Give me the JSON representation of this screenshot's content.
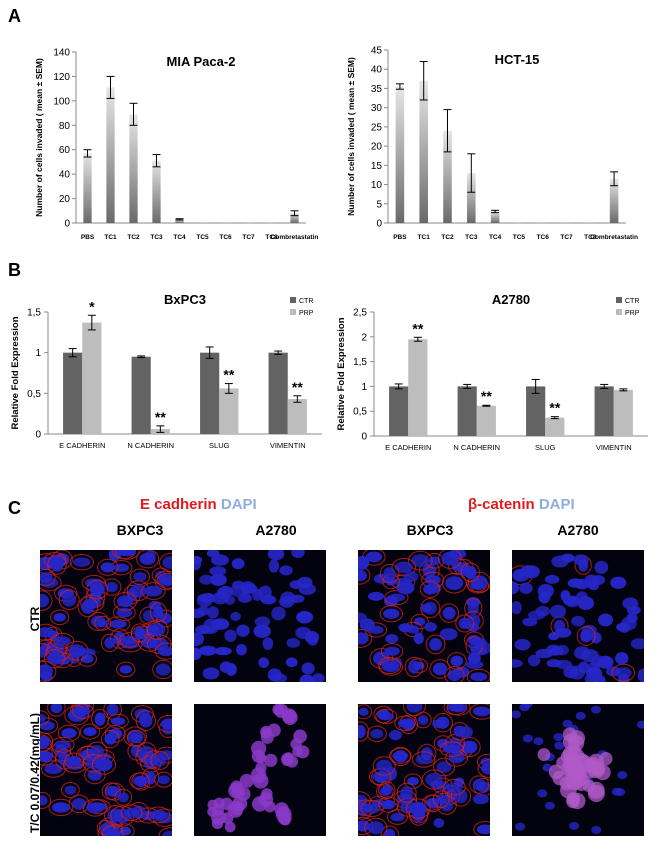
{
  "panels": {
    "a": "A",
    "b": "B",
    "c": "C"
  },
  "chart_data": [
    {
      "type": "bar",
      "id": "mia",
      "title": "MIA Paca-2",
      "ylabel": "Number of cells  invaded ( mean ± SEM)",
      "categories": [
        "PBS",
        "TC1",
        "TC2",
        "TC3",
        "TC4",
        "TC5",
        "TC6",
        "TC7",
        "TC8",
        "Combretastatin"
      ],
      "values": [
        57,
        111,
        89,
        51,
        3,
        0,
        0,
        0,
        0,
        8
      ],
      "errors": [
        3,
        9,
        9,
        5,
        0.5,
        0,
        0,
        0,
        0,
        2
      ],
      "ylim": [
        0,
        140
      ],
      "yticks": [
        0,
        20,
        40,
        60,
        80,
        100,
        120,
        140
      ],
      "ytick_labels": [
        "0",
        "20",
        "40",
        "60",
        "80",
        "100",
        "120",
        "140"
      ],
      "grid": false
    },
    {
      "type": "bar",
      "id": "hct",
      "title": "HCT-15",
      "ylabel": "Number of cells  invaded ( mean ± SEM)",
      "categories": [
        "PBS",
        "TC1",
        "TC2",
        "TC3",
        "TC4",
        "TC5",
        "TC6",
        "TC7",
        "TC8",
        "Combretastatin"
      ],
      "values": [
        35.5,
        37,
        24,
        13,
        3,
        0,
        0,
        0,
        0,
        11.5
      ],
      "errors": [
        0.7,
        5,
        5.5,
        5,
        0.3,
        0,
        0,
        0,
        0,
        1.8
      ],
      "ylim": [
        0,
        45
      ],
      "yticks": [
        0,
        5,
        10,
        15,
        20,
        25,
        30,
        35,
        40,
        45
      ],
      "ytick_labels": [
        "0",
        "5",
        "10",
        "15",
        "20",
        "25",
        "30",
        "35",
        "40",
        "45"
      ],
      "grid": false
    },
    {
      "type": "bar",
      "id": "bxpc3",
      "title": "BxPC3",
      "ylabel": "Relative Fold Expression",
      "categories": [
        "E CADHERIN",
        "N CADHERIN",
        "SLUG",
        "VIMENTIN"
      ],
      "series": [
        {
          "name": "CTR",
          "values": [
            1.0,
            0.95,
            1.0,
            1.0
          ],
          "errors": [
            0.05,
            0.01,
            0.07,
            0.02
          ],
          "color": "#636363"
        },
        {
          "name": "PRP",
          "values": [
            1.37,
            0.06,
            0.56,
            0.43
          ],
          "errors": [
            0.09,
            0.04,
            0.06,
            0.04
          ],
          "color": "#bdbdbd"
        }
      ],
      "annotations": [
        "*",
        "**",
        "**",
        "**"
      ],
      "ylim": [
        0,
        1.5
      ],
      "yticks": [
        0,
        0.5,
        1,
        1.5
      ],
      "ytick_labels": [
        "0",
        "0,5",
        "1",
        "1,5"
      ],
      "legend": "top-right",
      "grid": false
    },
    {
      "type": "bar",
      "id": "a2780",
      "title": "A2780",
      "ylabel": "Relative Fold Expression",
      "categories": [
        "E CADHERIN",
        "N CADHERIN",
        "SLUG",
        "VIMENTIN"
      ],
      "series": [
        {
          "name": "CTR",
          "values": [
            1.0,
            1.0,
            1.0,
            1.0
          ],
          "errors": [
            0.05,
            0.04,
            0.14,
            0.04
          ],
          "color": "#636363"
        },
        {
          "name": "PRP",
          "values": [
            1.95,
            0.61,
            0.37,
            0.93
          ],
          "errors": [
            0.04,
            0.01,
            0.02,
            0.02
          ],
          "color": "#bdbdbd"
        }
      ],
      "annotations": [
        "**",
        "**",
        "**",
        ""
      ],
      "ylim": [
        0,
        2.5
      ],
      "yticks": [
        0,
        0.5,
        1,
        1.5,
        2,
        2.5
      ],
      "ytick_labels": [
        "0",
        "0,5",
        "1",
        "1,5",
        "2",
        "2,5"
      ],
      "legend": "top-right",
      "grid": false
    }
  ],
  "panel_c": {
    "header_left": {
      "marker": "E cadherin",
      "stain": "DAPI"
    },
    "header_right": {
      "marker": "β-catenin",
      "stain": "DAPI"
    },
    "columns": [
      "BXPC3",
      "A2780",
      "BXPC3",
      "A2780"
    ],
    "rows": [
      "CTR",
      "T/C 0.07/0.42(mg/mL)"
    ],
    "colors": {
      "marker": "#e3191e",
      "stain": "#8eaedb",
      "nuclei": "#2626c8",
      "membrane": "#d02020"
    }
  }
}
